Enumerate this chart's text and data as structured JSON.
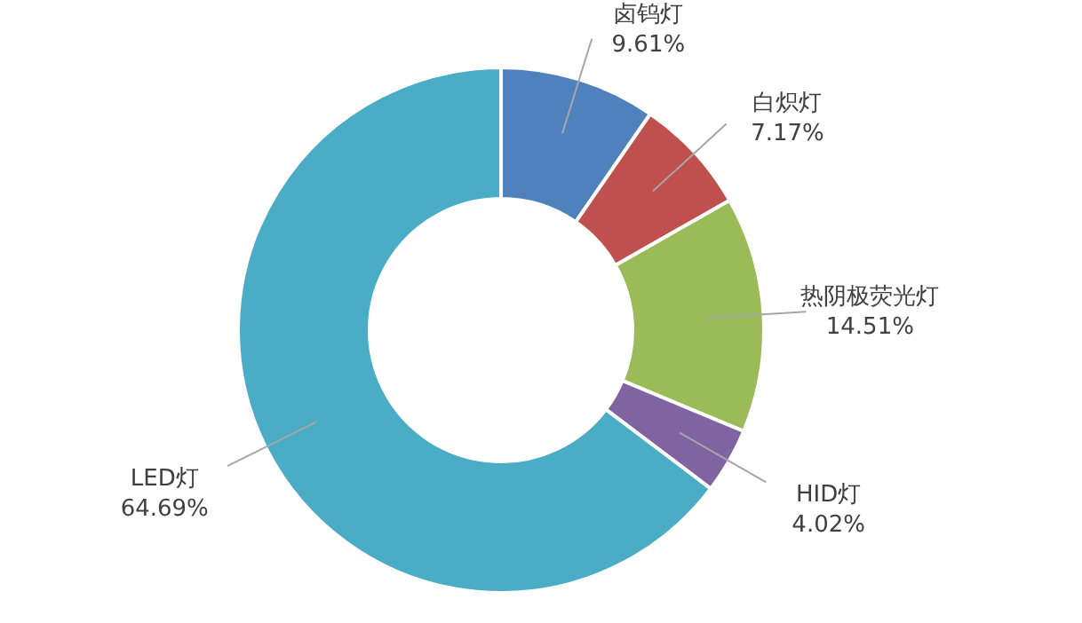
{
  "chart_data": {
    "type": "donut",
    "categories": [
      "卤钨灯",
      "白炽灯",
      "热阴极荧光灯",
      "HID灯",
      "LED灯"
    ],
    "values": [
      9.61,
      7.17,
      14.51,
      4.02,
      64.69
    ],
    "value_labels": [
      "9.61%",
      "7.17%",
      "14.51%",
      "4.02%",
      "64.69%"
    ],
    "colors": [
      "#4f81bd",
      "#c0504d",
      "#9bbb59",
      "#8064a2",
      "#4bacc6"
    ],
    "legend": false
  }
}
